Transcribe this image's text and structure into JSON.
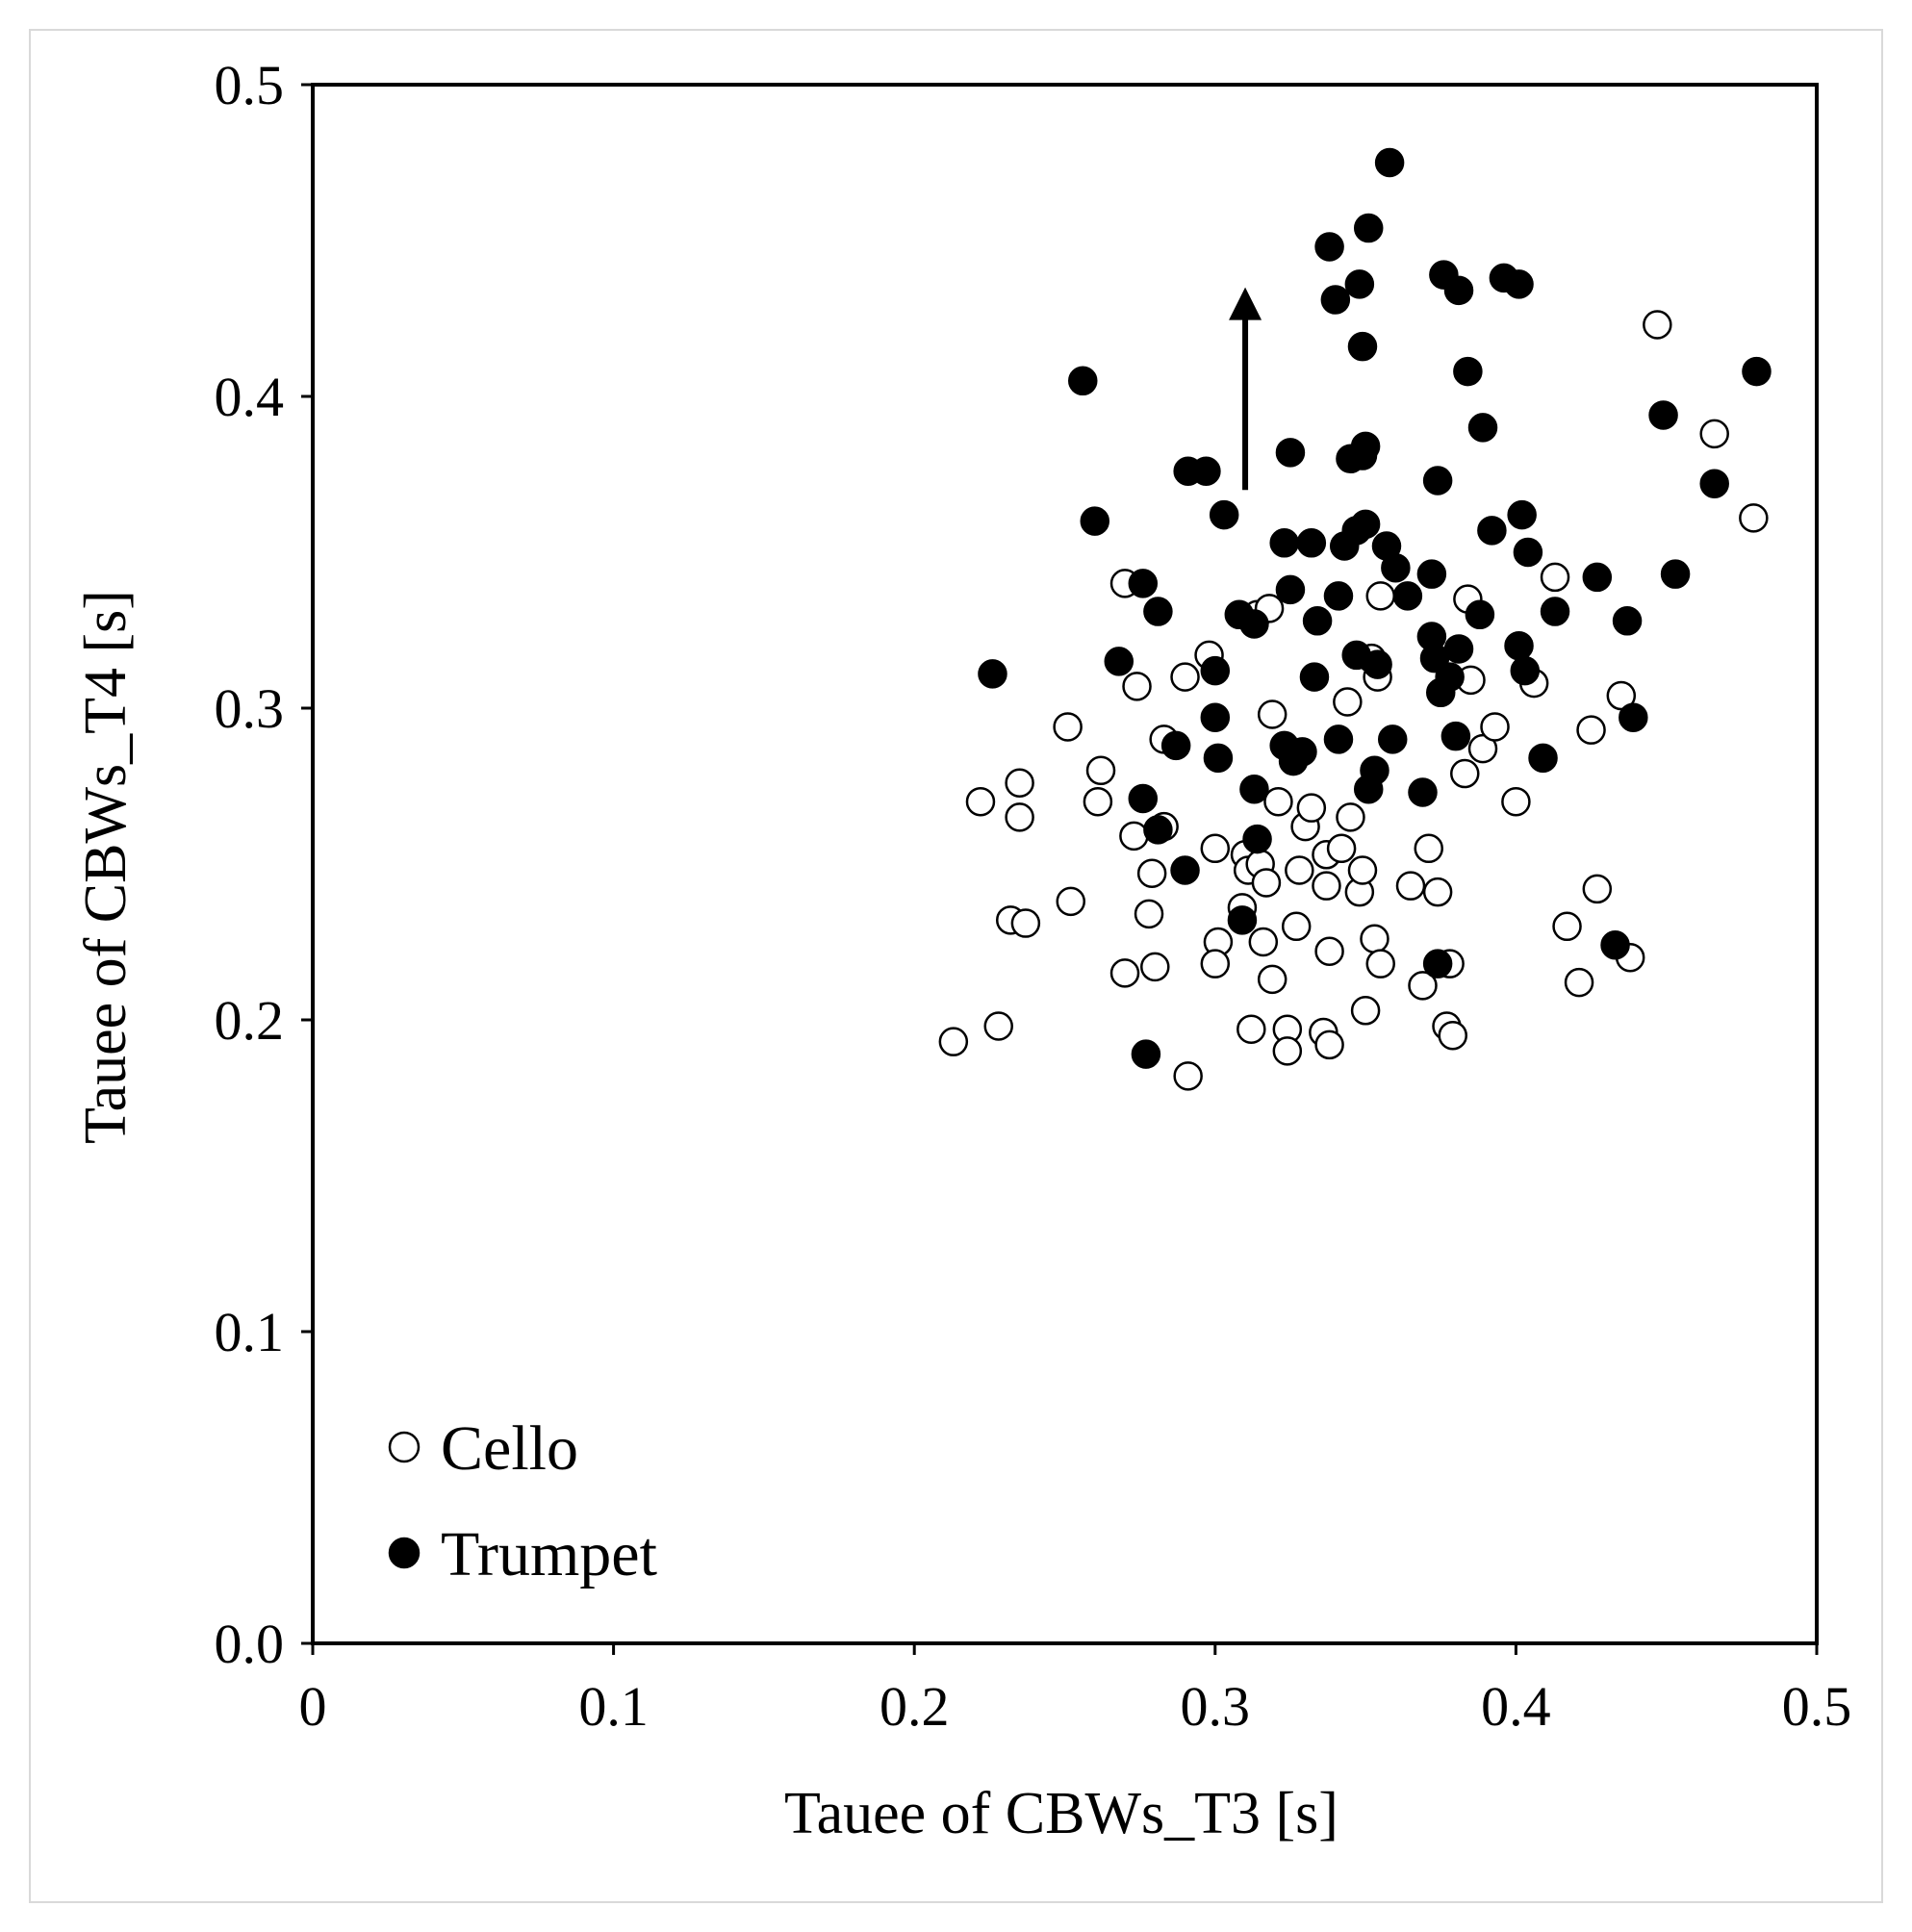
{
  "chart_data": {
    "type": "scatter",
    "xlabel": "Tauee of CBWs_T3 [s]",
    "ylabel": "Tauee of CBWs_T4 [s]",
    "xlim": [
      0,
      0.5
    ],
    "ylim": [
      0,
      0.5
    ],
    "xticks": [
      "0",
      "0.1",
      "0.2",
      "0.3",
      "0.4",
      "0.5"
    ],
    "yticks": [
      "0.0",
      "0.1",
      "0.2",
      "0.3",
      "0.4",
      "0.5"
    ],
    "grid": false,
    "legend_position": "bottom-left",
    "annotation": "upward arrow",
    "series": [
      {
        "name": "Cello",
        "marker": "open-circle",
        "color": "#000000",
        "points": [
          [
            0.213,
            0.193
          ],
          [
            0.228,
            0.198
          ],
          [
            0.222,
            0.27
          ],
          [
            0.235,
            0.276
          ],
          [
            0.235,
            0.265
          ],
          [
            0.232,
            0.232
          ],
          [
            0.237,
            0.231
          ],
          [
            0.251,
            0.294
          ],
          [
            0.252,
            0.238
          ],
          [
            0.262,
            0.28
          ],
          [
            0.261,
            0.27
          ],
          [
            0.27,
            0.34
          ],
          [
            0.274,
            0.307
          ],
          [
            0.273,
            0.259
          ],
          [
            0.279,
            0.247
          ],
          [
            0.278,
            0.234
          ],
          [
            0.27,
            0.215
          ],
          [
            0.28,
            0.217
          ],
          [
            0.283,
            0.29
          ],
          [
            0.283,
            0.262
          ],
          [
            0.29,
            0.31
          ],
          [
            0.291,
            0.182
          ],
          [
            0.298,
            0.317
          ],
          [
            0.3,
            0.255
          ],
          [
            0.301,
            0.225
          ],
          [
            0.3,
            0.218
          ],
          [
            0.31,
            0.253
          ],
          [
            0.311,
            0.248
          ],
          [
            0.309,
            0.236
          ],
          [
            0.314,
            0.33
          ],
          [
            0.315,
            0.25
          ],
          [
            0.317,
            0.244
          ],
          [
            0.316,
            0.225
          ],
          [
            0.319,
            0.213
          ],
          [
            0.312,
            0.197
          ],
          [
            0.318,
            0.332
          ],
          [
            0.319,
            0.298
          ],
          [
            0.321,
            0.27
          ],
          [
            0.324,
            0.197
          ],
          [
            0.324,
            0.19
          ],
          [
            0.327,
            0.23
          ],
          [
            0.328,
            0.248
          ],
          [
            0.33,
            0.262
          ],
          [
            0.332,
            0.268
          ],
          [
            0.336,
            0.196
          ],
          [
            0.337,
            0.253
          ],
          [
            0.337,
            0.243
          ],
          [
            0.338,
            0.222
          ],
          [
            0.338,
            0.192
          ],
          [
            0.342,
            0.255
          ],
          [
            0.344,
            0.302
          ],
          [
            0.345,
            0.265
          ],
          [
            0.348,
            0.241
          ],
          [
            0.349,
            0.248
          ],
          [
            0.35,
            0.203
          ],
          [
            0.352,
            0.316
          ],
          [
            0.353,
            0.226
          ],
          [
            0.355,
            0.336
          ],
          [
            0.355,
            0.218
          ],
          [
            0.354,
            0.31
          ],
          [
            0.365,
            0.243
          ],
          [
            0.369,
            0.211
          ],
          [
            0.371,
            0.255
          ],
          [
            0.374,
            0.241
          ],
          [
            0.378,
            0.218
          ],
          [
            0.377,
            0.198
          ],
          [
            0.379,
            0.195
          ],
          [
            0.383,
            0.279
          ],
          [
            0.384,
            0.335
          ],
          [
            0.385,
            0.309
          ],
          [
            0.389,
            0.287
          ],
          [
            0.393,
            0.294
          ],
          [
            0.4,
            0.27
          ],
          [
            0.406,
            0.308
          ],
          [
            0.413,
            0.342
          ],
          [
            0.417,
            0.23
          ],
          [
            0.421,
            0.212
          ],
          [
            0.425,
            0.293
          ],
          [
            0.427,
            0.242
          ],
          [
            0.435,
            0.304
          ],
          [
            0.438,
            0.22
          ],
          [
            0.447,
            0.423
          ],
          [
            0.466,
            0.388
          ],
          [
            0.479,
            0.361
          ]
        ]
      },
      {
        "name": "Trumpet",
        "marker": "filled-circle",
        "color": "#000000",
        "points": [
          [
            0.226,
            0.311
          ],
          [
            0.256,
            0.405
          ],
          [
            0.26,
            0.36
          ],
          [
            0.268,
            0.315
          ],
          [
            0.276,
            0.34
          ],
          [
            0.276,
            0.271
          ],
          [
            0.281,
            0.261
          ],
          [
            0.281,
            0.331
          ],
          [
            0.277,
            0.189
          ],
          [
            0.287,
            0.288
          ],
          [
            0.29,
            0.248
          ],
          [
            0.291,
            0.376
          ],
          [
            0.297,
            0.376
          ],
          [
            0.3,
            0.312
          ],
          [
            0.3,
            0.297
          ],
          [
            0.301,
            0.284
          ],
          [
            0.303,
            0.362
          ],
          [
            0.308,
            0.33
          ],
          [
            0.309,
            0.232
          ],
          [
            0.313,
            0.327
          ],
          [
            0.314,
            0.258
          ],
          [
            0.313,
            0.274
          ],
          [
            0.323,
            0.288
          ],
          [
            0.323,
            0.353
          ],
          [
            0.325,
            0.338
          ],
          [
            0.325,
            0.382
          ],
          [
            0.326,
            0.283
          ],
          [
            0.329,
            0.286
          ],
          [
            0.332,
            0.353
          ],
          [
            0.333,
            0.31
          ],
          [
            0.334,
            0.328
          ],
          [
            0.338,
            0.448
          ],
          [
            0.34,
            0.431
          ],
          [
            0.341,
            0.29
          ],
          [
            0.341,
            0.336
          ],
          [
            0.343,
            0.352
          ],
          [
            0.345,
            0.38
          ],
          [
            0.347,
            0.357
          ],
          [
            0.347,
            0.317
          ],
          [
            0.348,
            0.436
          ],
          [
            0.349,
            0.381
          ],
          [
            0.349,
            0.416
          ],
          [
            0.35,
            0.359
          ],
          [
            0.35,
            0.384
          ],
          [
            0.351,
            0.274
          ],
          [
            0.351,
            0.454
          ],
          [
            0.353,
            0.28
          ],
          [
            0.354,
            0.314
          ],
          [
            0.357,
            0.352
          ],
          [
            0.358,
            0.475
          ],
          [
            0.359,
            0.29
          ],
          [
            0.36,
            0.345
          ],
          [
            0.364,
            0.336
          ],
          [
            0.369,
            0.273
          ],
          [
            0.372,
            0.343
          ],
          [
            0.372,
            0.323
          ],
          [
            0.374,
            0.373
          ],
          [
            0.373,
            0.316
          ],
          [
            0.375,
            0.305
          ],
          [
            0.374,
            0.218
          ],
          [
            0.376,
            0.439
          ],
          [
            0.378,
            0.31
          ],
          [
            0.38,
            0.291
          ],
          [
            0.381,
            0.434
          ],
          [
            0.381,
            0.319
          ],
          [
            0.384,
            0.408
          ],
          [
            0.388,
            0.33
          ],
          [
            0.389,
            0.39
          ],
          [
            0.392,
            0.357
          ],
          [
            0.396,
            0.438
          ],
          [
            0.401,
            0.436
          ],
          [
            0.401,
            0.32
          ],
          [
            0.402,
            0.362
          ],
          [
            0.403,
            0.312
          ],
          [
            0.404,
            0.35
          ],
          [
            0.409,
            0.284
          ],
          [
            0.413,
            0.331
          ],
          [
            0.427,
            0.342
          ],
          [
            0.433,
            0.224
          ],
          [
            0.437,
            0.328
          ],
          [
            0.439,
            0.297
          ],
          [
            0.449,
            0.394
          ],
          [
            0.453,
            0.343
          ],
          [
            0.466,
            0.372
          ],
          [
            0.48,
            0.408
          ]
        ]
      }
    ]
  }
}
